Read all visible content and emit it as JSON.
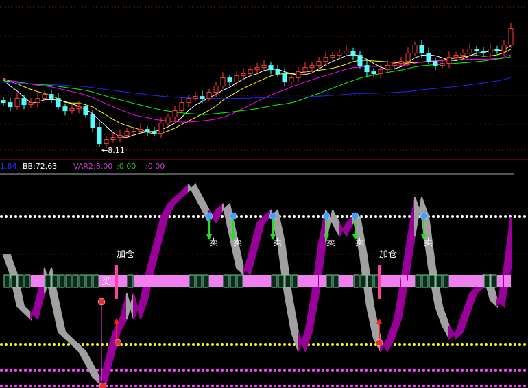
{
  "info_bar": {
    "v1": "1.84",
    "bb": "BB:72.63",
    "var2": "VAR2:8.00",
    "v3": ":0.00",
    "v4": ":0.00"
  },
  "colors": {
    "up": "#ff3c3c",
    "down": "#54ffff",
    "ma5": "#ffffff",
    "ma10": "#ffff00",
    "ma20": "#ff00ff",
    "ma30": "#00ff00",
    "ma60": "#2020ff",
    "rise_ribbon": "#990099",
    "fall_ribbon": "#a0a0a0",
    "strip_pink": "#f080f0",
    "strip_box": "#0a2a1a"
  },
  "chart_data": [
    {
      "type": "candlestick",
      "low_label": "8.11",
      "close": [
        9.2,
        9.1,
        9.3,
        9.15,
        9.2,
        9.3,
        9.4,
        9.3,
        9.1,
        9.0,
        9.05,
        9.1,
        8.9,
        8.6,
        8.2,
        8.3,
        8.35,
        8.4,
        8.5,
        8.5,
        8.55,
        8.5,
        8.45,
        8.7,
        8.85,
        9.0,
        9.2,
        9.3,
        9.35,
        9.3,
        9.45,
        9.6,
        9.8,
        9.7,
        9.85,
        9.9,
        10.0,
        10.05,
        10.1,
        10.0,
        9.9,
        9.7,
        9.8,
        9.95,
        10.05,
        10.1,
        10.2,
        10.3,
        10.35,
        10.4,
        10.45,
        10.35,
        10.1,
        9.95,
        9.9,
        10.0,
        10.1,
        10.15,
        10.2,
        10.4,
        10.6,
        10.4,
        10.2,
        10.1,
        10.15,
        10.3,
        10.35,
        10.4,
        10.5,
        10.45,
        10.4,
        10.5,
        10.45,
        10.6,
        11.0
      ],
      "moving_averages": [
        5,
        10,
        20,
        30,
        60
      ]
    },
    {
      "type": "line",
      "fast": [
        70,
        55,
        30,
        25,
        20,
        40,
        60,
        35,
        10,
        5,
        0,
        -5,
        -15,
        -25,
        -30,
        -10,
        10,
        20,
        40,
        20,
        35,
        60,
        80,
        100,
        110,
        115,
        120,
        125,
        115,
        105,
        95,
        105,
        110,
        85,
        60,
        55,
        75,
        95,
        100,
        105,
        80,
        40,
        10,
        -5,
        10,
        40,
        80,
        105,
        95,
        85,
        95,
        100,
        70,
        30,
        5,
        -5,
        5,
        20,
        50,
        85,
        115,
        100,
        60,
        30,
        15,
        5,
        10,
        25,
        40,
        45,
        55,
        35,
        30,
        60,
        100
      ],
      "levels": [
        100,
        0,
        -20
      ],
      "signals": {
        "buy": "买",
        "add": [
          "加仓",
          "加仓"
        ],
        "sell": [
          "卖",
          "卖",
          "卖",
          "卖",
          "卖",
          "卖"
        ]
      }
    }
  ]
}
